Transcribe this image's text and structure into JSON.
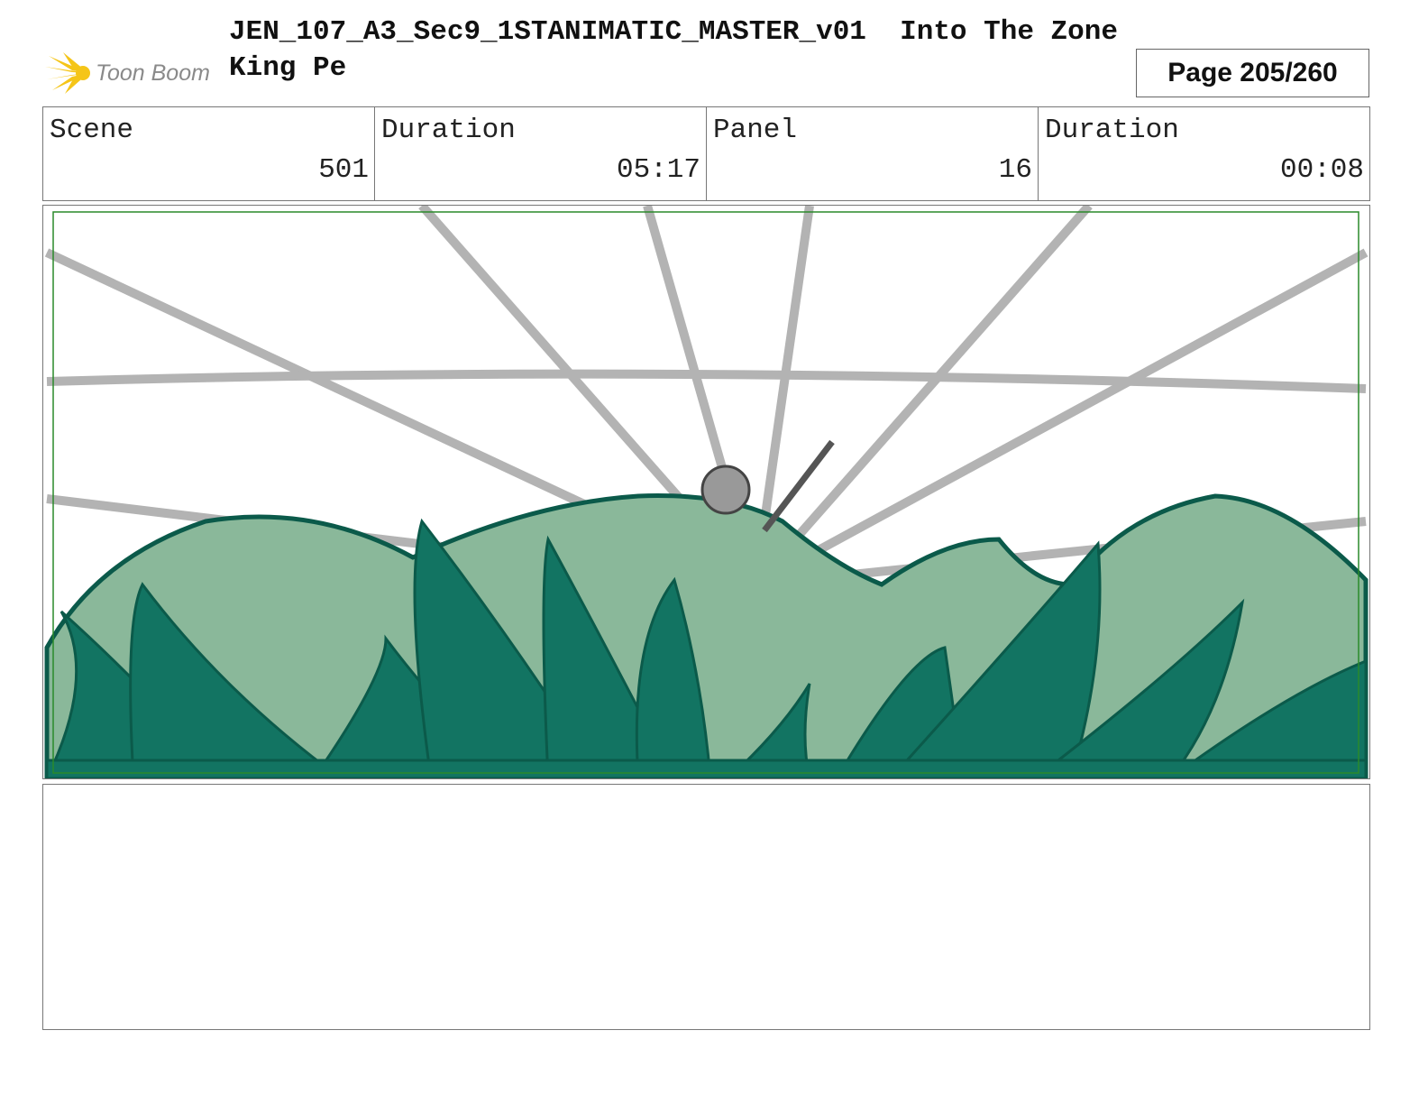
{
  "header": {
    "logo_text": "Toon Boom",
    "title": "JEN_107_A3_Sec9_1STANIMATIC_MASTER_v01  Into The Zone King Pe",
    "page": "Page 205/260"
  },
  "info": [
    {
      "label": "Scene",
      "value": "501"
    },
    {
      "label": "Duration",
      "value": "05:17"
    },
    {
      "label": "Panel",
      "value": "16"
    },
    {
      "label": "Duration",
      "value": "00:08"
    }
  ],
  "colors": {
    "hill_light": "#8ab89a",
    "hill_dark": "#127462",
    "outline": "#0b5a4a",
    "speed_lines": "#b3b3b3",
    "safe_frame": "#2a8a2a",
    "logo_yellow": "#f5c518"
  },
  "notes": ""
}
